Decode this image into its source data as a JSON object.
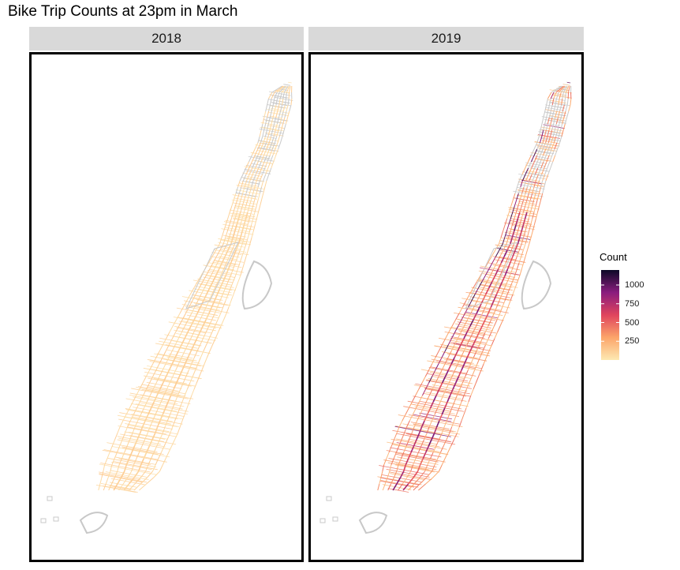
{
  "chart_data": {
    "type": "heatmap",
    "title": "Bike Trip Counts at 23pm in March",
    "facets": [
      {
        "label": "2018",
        "intensity": 0.08,
        "hot_corridors": 0.12
      },
      {
        "label": "2019",
        "intensity": 0.3,
        "hot_corridors": 0.85
      }
    ],
    "legend": {
      "title": "Count",
      "placement": "right",
      "min": 0,
      "max": 1200,
      "ticks": [
        1000,
        750,
        500,
        250
      ],
      "tick_labels": [
        "1000",
        "750",
        "500",
        "250"
      ]
    },
    "colors": {
      "low": "#fde9b2",
      "mid_low": "#fca56a",
      "mid": "#e0445d",
      "mid_high": "#8a1c7e",
      "high": "#0c0827",
      "no_data": "#c8c8c8"
    },
    "grid": false
  }
}
